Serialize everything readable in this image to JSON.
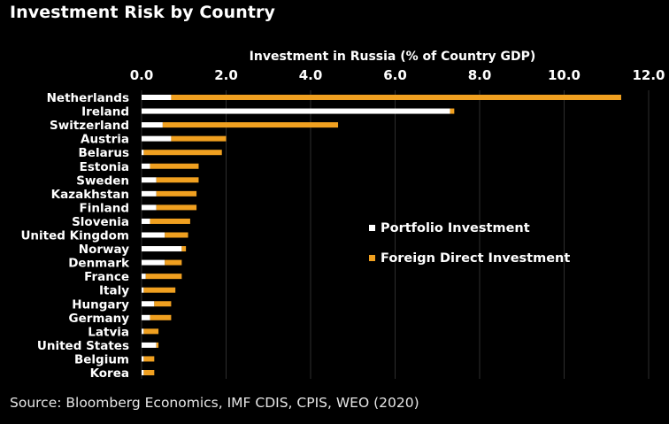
{
  "title": "Investment Risk by Country",
  "source": "Source: Bloomberg Economics, IMF CDIS, CPIS, WEO (2020)",
  "colors": {
    "portfolio": "#ffffff",
    "fdi": "#f0a020",
    "grid": "#2e2e2e",
    "background": "#000000"
  },
  "chart_data": {
    "type": "bar",
    "orientation": "horizontal",
    "stacked": true,
    "xlabel": "Investment in Russia (% of Country GDP)",
    "xaxis_position": "top",
    "xlim": [
      0,
      12
    ],
    "xticks": [
      "0.0",
      "2.0",
      "4.0",
      "6.0",
      "8.0",
      "10.0",
      "12.0"
    ],
    "grid": true,
    "legend_position": "center-right",
    "categories": [
      "Netherlands",
      "Ireland",
      "Switzerland",
      "Austria",
      "Belarus",
      "Estonia",
      "Sweden",
      "Kazakhstan",
      "Finland",
      "Slovenia",
      "United Kingdom",
      "Norway",
      "Denmark",
      "France",
      "Italy",
      "Hungary",
      "Germany",
      "Latvia",
      "United States",
      "Belgium",
      "Korea"
    ],
    "series": [
      {
        "name": "Portfolio Investment",
        "values": [
          0.7,
          7.3,
          0.5,
          0.7,
          0.05,
          0.2,
          0.35,
          0.35,
          0.35,
          0.2,
          0.55,
          0.95,
          0.55,
          0.1,
          0.05,
          0.3,
          0.2,
          0.05,
          0.35,
          0.05,
          0.05
        ]
      },
      {
        "name": "Foreign Direct Investment",
        "values": [
          10.65,
          0.1,
          4.15,
          1.3,
          1.85,
          1.15,
          1.0,
          0.95,
          0.95,
          0.95,
          0.55,
          0.1,
          0.4,
          0.85,
          0.75,
          0.4,
          0.5,
          0.35,
          0.05,
          0.25,
          0.25
        ]
      }
    ]
  }
}
